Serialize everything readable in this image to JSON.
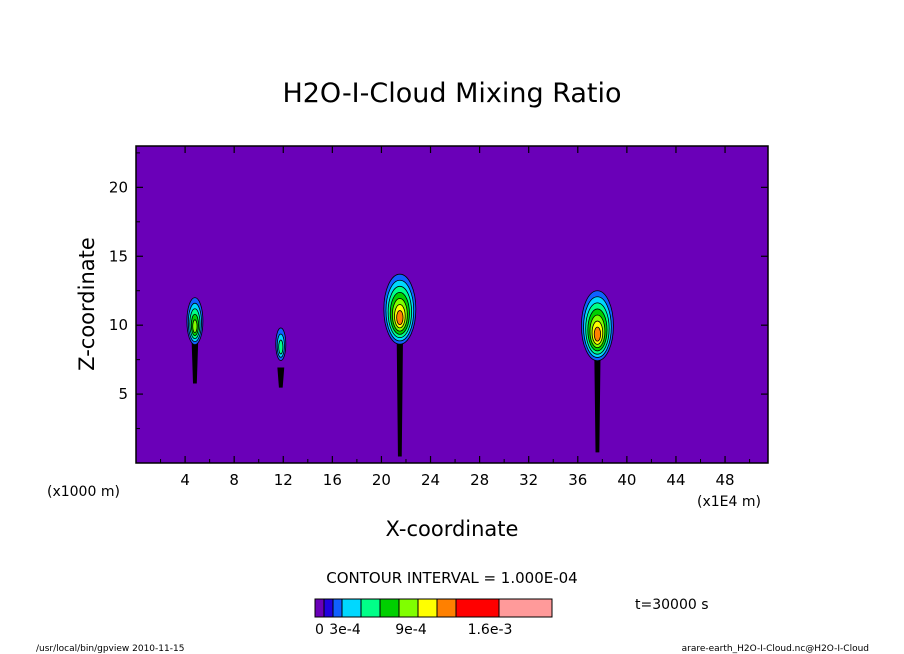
{
  "chart_data": {
    "type": "contour",
    "title": "H2O-I-Cloud Mixing Ratio",
    "xlabel": "X-coordinate",
    "ylabel": "Z-coordinate",
    "x_unit_left": "(x1000 m)",
    "x_unit_right": "(x1E4 m)",
    "xlim": [
      0,
      51.5
    ],
    "ylim": [
      0,
      23
    ],
    "x_ticks": [
      4,
      8,
      12,
      16,
      20,
      24,
      28,
      32,
      36,
      40,
      44,
      48
    ],
    "y_ticks": [
      5,
      10,
      15,
      20
    ],
    "contour_interval_text": "CONTOUR INTERVAL = 1.000E-04",
    "time_label": "t=30000 s",
    "colorbar": {
      "colors": [
        "#6a00b8",
        "#2000e0",
        "#1060ff",
        "#00d8ff",
        "#00ff88",
        "#00d000",
        "#80ff00",
        "#ffff00",
        "#ff8000",
        "#ff0000",
        "#ff9a9a"
      ],
      "labels": [
        "0",
        "3e-4",
        "9e-4",
        "1.6e-3"
      ]
    },
    "cloud_cells": [
      {
        "x_center": 4.8,
        "z_base": 5.8,
        "z_top": 12.0,
        "max_level": "9e-4"
      },
      {
        "x_center": 11.8,
        "z_base": 5.5,
        "z_top": 9.8,
        "max_level": "3e-4"
      },
      {
        "x_center": 21.5,
        "z_base": 0.5,
        "z_top": 13.7,
        "max_level": "1.6e-3"
      },
      {
        "x_center": 37.6,
        "z_base": 0.8,
        "z_top": 12.5,
        "max_level": "1.6e-3"
      }
    ],
    "background_color": "#6a00b8"
  },
  "footer": {
    "left": "/usr/local/bin/gpview  2010-11-15",
    "right": "arare-earth_H2O-I-Cloud.nc@H2O-I-Cloud"
  }
}
